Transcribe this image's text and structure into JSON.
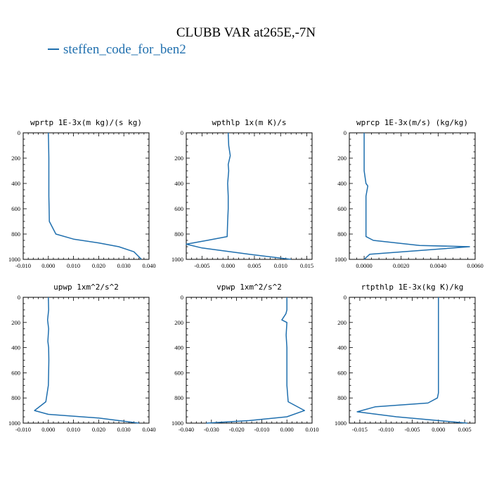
{
  "figure": {
    "title": "CLUBB VAR at265E,-7N",
    "legend": [
      {
        "name": "steffen_code_for_ben2",
        "color": "#1f6fae"
      }
    ]
  },
  "chart_data": [
    {
      "type": "line",
      "title": "wprtp  1E-3x(m kg)/(s kg)",
      "xlim": [
        -0.01,
        0.04
      ],
      "ylim": [
        1000,
        0
      ],
      "xticks": [
        "-0.010",
        "0.000",
        "0.010",
        "0.020",
        "0.030",
        "0.040"
      ],
      "xtick_values": [
        -0.01,
        0.0,
        0.01,
        0.02,
        0.03,
        0.04
      ],
      "yticks": [
        "0",
        "200",
        "400",
        "600",
        "800",
        "1000"
      ],
      "ytick_values": [
        0,
        200,
        400,
        600,
        800,
        1000
      ],
      "series": [
        {
          "name": "steffen_code_for_ben2",
          "x": [
            0.0,
            0.0001,
            0.0002,
            0.0002,
            0.0002,
            0.0002,
            0.0003,
            0.0004,
            0.003,
            0.01,
            0.02,
            0.028,
            0.034,
            0.037
          ],
          "y": [
            0,
            100,
            200,
            300,
            400,
            500,
            600,
            700,
            800,
            840,
            870,
            900,
            940,
            1000
          ]
        }
      ]
    },
    {
      "type": "line",
      "title": "wpthlp  1x(m K)/s",
      "xlim": [
        -0.008,
        0.016
      ],
      "ylim": [
        1000,
        0
      ],
      "xticks": [
        "-0.005",
        "0.000",
        "0.005",
        "0.010",
        "0.015"
      ],
      "xtick_values": [
        -0.005,
        0.0,
        0.005,
        0.01,
        0.015
      ],
      "yticks": [
        "0",
        "200",
        "400",
        "600",
        "800",
        "1000"
      ],
      "ytick_values": [
        0,
        200,
        400,
        600,
        800,
        1000
      ],
      "series": [
        {
          "name": "steffen_code_for_ben2",
          "x": [
            0.0,
            0.0001,
            0.0004,
            0.0,
            0.0001,
            -0.0001,
            0.0,
            0.0,
            -0.0001,
            -0.0002,
            -0.004,
            -0.008,
            -0.005,
            0.004,
            0.012
          ],
          "y": [
            0,
            100,
            180,
            250,
            300,
            400,
            500,
            600,
            700,
            820,
            850,
            880,
            910,
            960,
            1000
          ]
        }
      ]
    },
    {
      "type": "line",
      "title": "wprcp  1E-3x(m/s) (kg/kg)",
      "xlim": [
        -0.0008,
        0.006
      ],
      "ylim": [
        1000,
        0
      ],
      "xticks": [
        "0.0000",
        "0.0020",
        "0.0040",
        "0.0060"
      ],
      "xtick_values": [
        0.0,
        0.002,
        0.004,
        0.006
      ],
      "yticks": [
        "0",
        "200",
        "400",
        "600",
        "800",
        "1000"
      ],
      "ytick_values": [
        0,
        200,
        400,
        600,
        800,
        1000
      ],
      "series": [
        {
          "name": "steffen_code_for_ben2",
          "x": [
            0.0,
            0.0,
            0.0,
            0.0001,
            0.0002,
            0.0001,
            0.0001,
            0.0001,
            0.0001,
            0.0005,
            0.003,
            0.0057,
            0.0003,
            0.0
          ],
          "y": [
            0,
            100,
            300,
            400,
            420,
            500,
            600,
            700,
            820,
            850,
            890,
            900,
            960,
            1000
          ]
        }
      ]
    },
    {
      "type": "line",
      "title": "upwp  1xm^2/s^2",
      "xlim": [
        -0.01,
        0.04
      ],
      "ylim": [
        1000,
        0
      ],
      "xticks": [
        "-0.010",
        "0.000",
        "0.010",
        "0.020",
        "0.030",
        "0.040"
      ],
      "xtick_values": [
        -0.01,
        0.0,
        0.01,
        0.02,
        0.03,
        0.04
      ],
      "yticks": [
        "0",
        "200",
        "400",
        "600",
        "800",
        "1000"
      ],
      "ytick_values": [
        0,
        200,
        400,
        600,
        800,
        1000
      ],
      "series": [
        {
          "name": "steffen_code_for_ben2",
          "x": [
            0.0,
            0.0001,
            -0.0003,
            0.0001,
            -0.0002,
            0.0001,
            0.0002,
            0.0001,
            0.0,
            -0.001,
            -0.0055,
            0.0,
            0.02,
            0.036
          ],
          "y": [
            0,
            100,
            180,
            250,
            350,
            400,
            500,
            600,
            700,
            830,
            900,
            930,
            960,
            1000
          ]
        }
      ]
    },
    {
      "type": "line",
      "title": "vpwp  1xm^2/s^2",
      "xlim": [
        -0.04,
        0.01
      ],
      "ylim": [
        1000,
        0
      ],
      "xticks": [
        "-0.040",
        "-0.030",
        "-0.020",
        "-0.010",
        "0.000",
        "0.010"
      ],
      "xtick_values": [
        -0.04,
        -0.03,
        -0.02,
        -0.01,
        0.0,
        0.01
      ],
      "yticks": [
        "0",
        "200",
        "400",
        "600",
        "800",
        "1000"
      ],
      "ytick_values": [
        0,
        200,
        400,
        600,
        800,
        1000
      ],
      "series": [
        {
          "name": "steffen_code_for_ben2",
          "x": [
            0.0,
            0.0,
            -0.0004,
            -0.002,
            0.0,
            -0.0003,
            0.0,
            0.0,
            0.0,
            0.0,
            0.0005,
            0.007,
            0.0,
            -0.015,
            -0.032
          ],
          "y": [
            0,
            100,
            130,
            180,
            200,
            300,
            400,
            500,
            600,
            700,
            830,
            900,
            950,
            980,
            1000
          ]
        }
      ]
    },
    {
      "type": "line",
      "title": "rtpthlp  1E-3x(kg K)/kg",
      "xlim": [
        -0.017,
        0.007
      ],
      "ylim": [
        1000,
        0
      ],
      "xticks": [
        "-0.015",
        "-0.010",
        "-0.005",
        "0.000",
        "0.005"
      ],
      "xtick_values": [
        -0.015,
        -0.01,
        -0.005,
        0.0,
        0.005
      ],
      "yticks": [
        "0",
        "200",
        "400",
        "600",
        "800",
        "1000"
      ],
      "ytick_values": [
        0,
        200,
        400,
        600,
        800,
        1000
      ],
      "series": [
        {
          "name": "steffen_code_for_ben2",
          "x": [
            0.0,
            0.0,
            0.0,
            0.0,
            0.0,
            -0.0002,
            -0.002,
            -0.012,
            -0.0155,
            -0.008,
            0.0,
            0.0055
          ],
          "y": [
            0,
            200,
            400,
            600,
            760,
            800,
            840,
            870,
            910,
            950,
            980,
            1000
          ]
        }
      ]
    }
  ]
}
